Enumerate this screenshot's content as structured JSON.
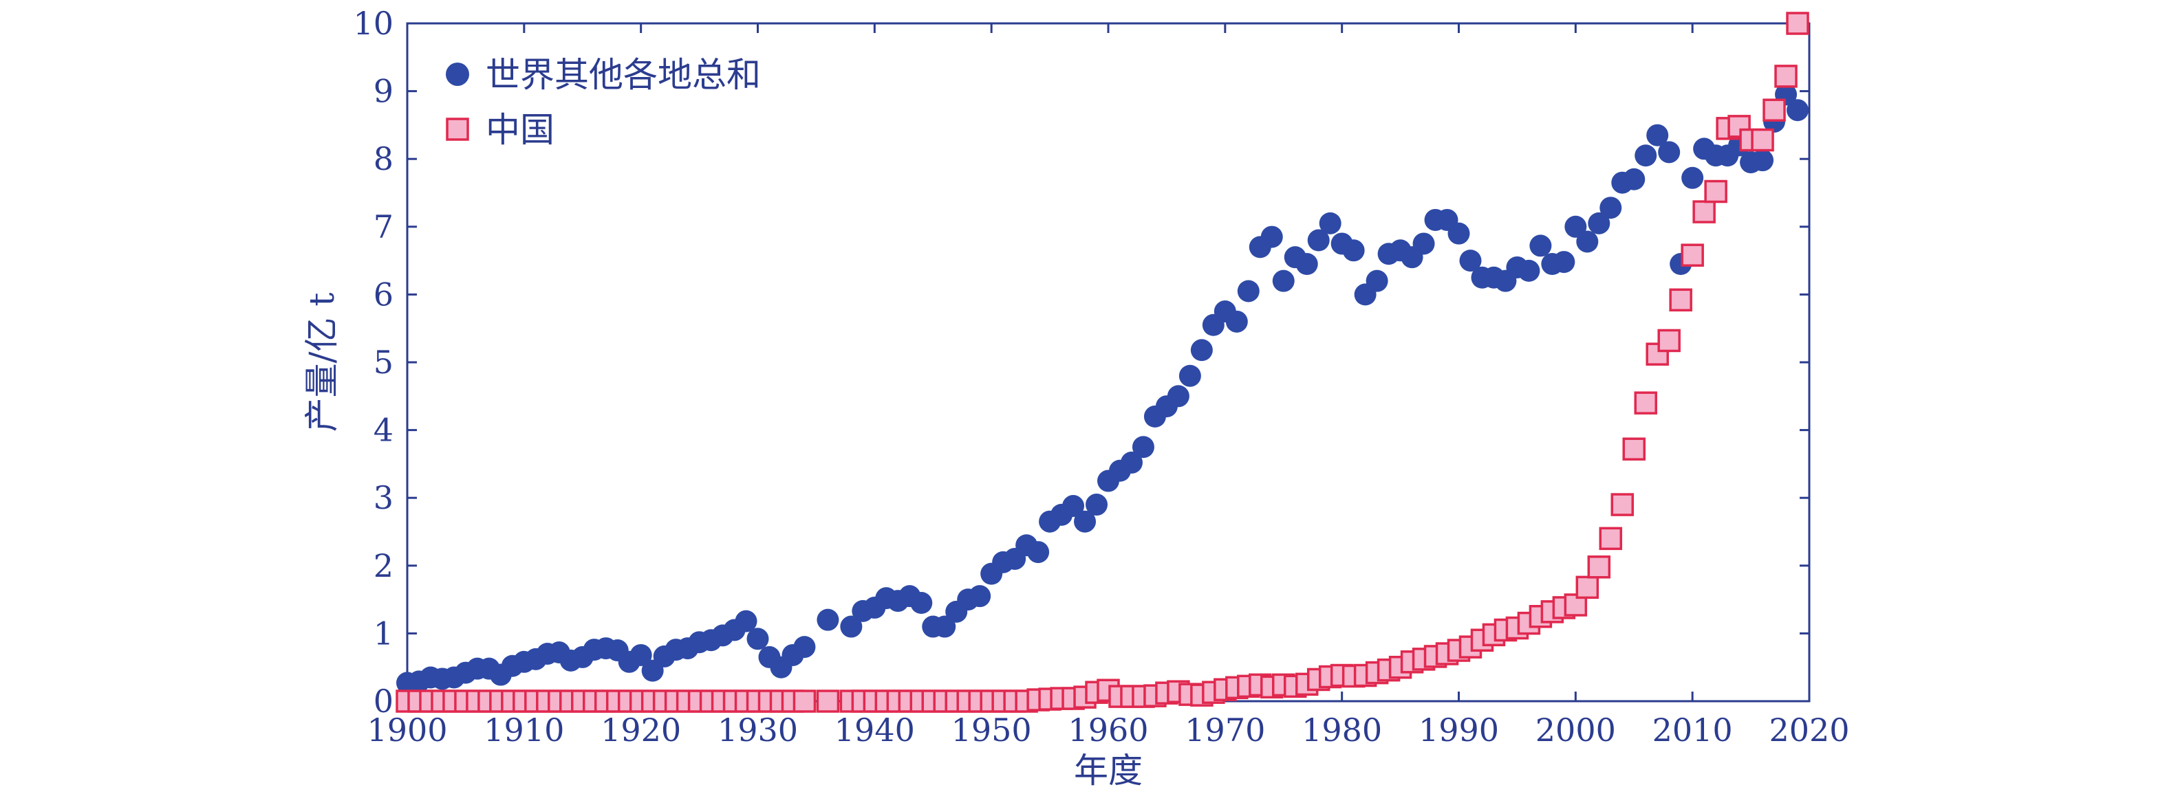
{
  "chart_data": {
    "type": "scatter",
    "title": "",
    "xlabel": "年度",
    "ylabel": "产量/亿 t",
    "xlim": [
      1900,
      2020
    ],
    "ylim": [
      0,
      10
    ],
    "xticks": [
      1900,
      1910,
      1920,
      1930,
      1940,
      1950,
      1960,
      1970,
      1980,
      1990,
      2000,
      2010,
      2020
    ],
    "yticks": [
      0,
      1,
      2,
      3,
      4,
      5,
      6,
      7,
      8,
      9,
      10
    ],
    "grid": false,
    "legend_position": "top-left",
    "colors": {
      "axis": "#2b3c8f",
      "world_fill": "#2e4aa6",
      "china_fill": "#f6b3cc",
      "china_stroke": "#e0294f"
    },
    "series": [
      {
        "name": "世界其他各地总和",
        "marker": "circle",
        "x": [
          1900,
          1901,
          1902,
          1903,
          1904,
          1905,
          1906,
          1907,
          1908,
          1909,
          1910,
          1911,
          1912,
          1913,
          1914,
          1915,
          1916,
          1917,
          1918,
          1919,
          1920,
          1921,
          1922,
          1923,
          1924,
          1925,
          1926,
          1927,
          1928,
          1929,
          1930,
          1931,
          1932,
          1933,
          1934,
          1936,
          1938,
          1939,
          1940,
          1941,
          1942,
          1943,
          1944,
          1945,
          1946,
          1947,
          1948,
          1949,
          1950,
          1951,
          1952,
          1953,
          1954,
          1955,
          1956,
          1957,
          1958,
          1959,
          1960,
          1961,
          1962,
          1963,
          1964,
          1965,
          1966,
          1967,
          1968,
          1969,
          1970,
          1971,
          1972,
          1973,
          1974,
          1975,
          1976,
          1977,
          1978,
          1979,
          1980,
          1981,
          1982,
          1983,
          1984,
          1985,
          1986,
          1987,
          1988,
          1989,
          1990,
          1991,
          1992,
          1993,
          1994,
          1995,
          1996,
          1997,
          1998,
          1999,
          2000,
          2001,
          2002,
          2003,
          2004,
          2005,
          2006,
          2007,
          2008,
          2009,
          2010,
          2011,
          2012,
          2013,
          2014,
          2015,
          2016,
          2017,
          2018,
          2019
        ],
        "y": [
          0.27,
          0.29,
          0.35,
          0.33,
          0.35,
          0.42,
          0.48,
          0.48,
          0.39,
          0.52,
          0.58,
          0.62,
          0.7,
          0.72,
          0.6,
          0.65,
          0.76,
          0.78,
          0.75,
          0.58,
          0.68,
          0.45,
          0.66,
          0.76,
          0.78,
          0.87,
          0.9,
          0.97,
          1.05,
          1.18,
          0.92,
          0.65,
          0.5,
          0.68,
          0.8,
          1.2,
          1.1,
          1.33,
          1.38,
          1.52,
          1.48,
          1.55,
          1.45,
          1.1,
          1.1,
          1.32,
          1.5,
          1.55,
          1.88,
          2.05,
          2.1,
          2.3,
          2.2,
          2.65,
          2.75,
          2.88,
          2.65,
          2.9,
          3.25,
          3.4,
          3.52,
          3.75,
          4.2,
          4.35,
          4.5,
          4.8,
          5.18,
          5.55,
          5.75,
          5.6,
          6.05,
          6.7,
          6.85,
          6.2,
          6.55,
          6.45,
          6.8,
          7.05,
          6.75,
          6.65,
          6.0,
          6.2,
          6.6,
          6.65,
          6.55,
          6.75,
          7.1,
          7.1,
          6.9,
          6.5,
          6.25,
          6.25,
          6.2,
          6.4,
          6.35,
          6.72,
          6.45,
          6.48,
          7.0,
          6.78,
          7.05,
          7.28,
          7.65,
          7.7,
          8.05,
          8.35,
          8.1,
          6.45,
          7.72,
          8.15,
          8.05,
          8.05,
          8.2,
          7.95,
          7.98,
          8.55,
          8.95,
          8.72
        ]
      },
      {
        "name": "中国",
        "marker": "square",
        "x": [
          1900,
          1901,
          1902,
          1903,
          1904,
          1905,
          1906,
          1907,
          1908,
          1909,
          1910,
          1911,
          1912,
          1913,
          1914,
          1915,
          1916,
          1917,
          1918,
          1919,
          1920,
          1921,
          1922,
          1923,
          1924,
          1925,
          1926,
          1927,
          1928,
          1929,
          1930,
          1931,
          1932,
          1933,
          1934,
          1936,
          1938,
          1939,
          1940,
          1941,
          1942,
          1943,
          1944,
          1945,
          1946,
          1947,
          1948,
          1949,
          1950,
          1951,
          1952,
          1953,
          1954,
          1955,
          1956,
          1957,
          1958,
          1959,
          1960,
          1961,
          1962,
          1963,
          1964,
          1965,
          1966,
          1967,
          1968,
          1969,
          1970,
          1971,
          1972,
          1973,
          1974,
          1975,
          1976,
          1977,
          1978,
          1979,
          1980,
          1981,
          1982,
          1983,
          1984,
          1985,
          1986,
          1987,
          1988,
          1989,
          1990,
          1991,
          1992,
          1993,
          1994,
          1995,
          1996,
          1997,
          1998,
          1999,
          2000,
          2001,
          2002,
          2003,
          2004,
          2005,
          2006,
          2007,
          2008,
          2009,
          2010,
          2011,
          2012,
          2013,
          2014,
          2015,
          2016,
          2017,
          2018,
          2019
        ],
        "y": [
          0,
          0,
          0,
          0,
          0,
          0,
          0,
          0,
          0,
          0,
          0,
          0,
          0,
          0,
          0,
          0,
          0,
          0,
          0,
          0,
          0,
          0,
          0,
          0,
          0,
          0,
          0,
          0,
          0,
          0,
          0,
          0,
          0,
          0,
          0,
          0,
          0,
          0,
          0,
          0,
          0,
          0,
          0,
          0,
          0,
          0,
          0,
          0,
          0,
          0,
          0,
          0,
          0.02,
          0.03,
          0.04,
          0.04,
          0.06,
          0.13,
          0.16,
          0.07,
          0.07,
          0.07,
          0.08,
          0.12,
          0.14,
          0.1,
          0.09,
          0.13,
          0.17,
          0.2,
          0.22,
          0.24,
          0.21,
          0.24,
          0.22,
          0.25,
          0.32,
          0.36,
          0.38,
          0.37,
          0.38,
          0.42,
          0.46,
          0.5,
          0.58,
          0.62,
          0.66,
          0.7,
          0.75,
          0.8,
          0.9,
          0.98,
          1.05,
          1.08,
          1.15,
          1.25,
          1.32,
          1.38,
          1.42,
          1.68,
          1.98,
          2.4,
          2.9,
          3.72,
          4.4,
          5.12,
          5.32,
          5.92,
          6.58,
          7.22,
          7.52,
          8.45,
          8.48,
          8.28,
          8.28,
          8.72,
          9.22,
          10.0
        ]
      }
    ]
  }
}
